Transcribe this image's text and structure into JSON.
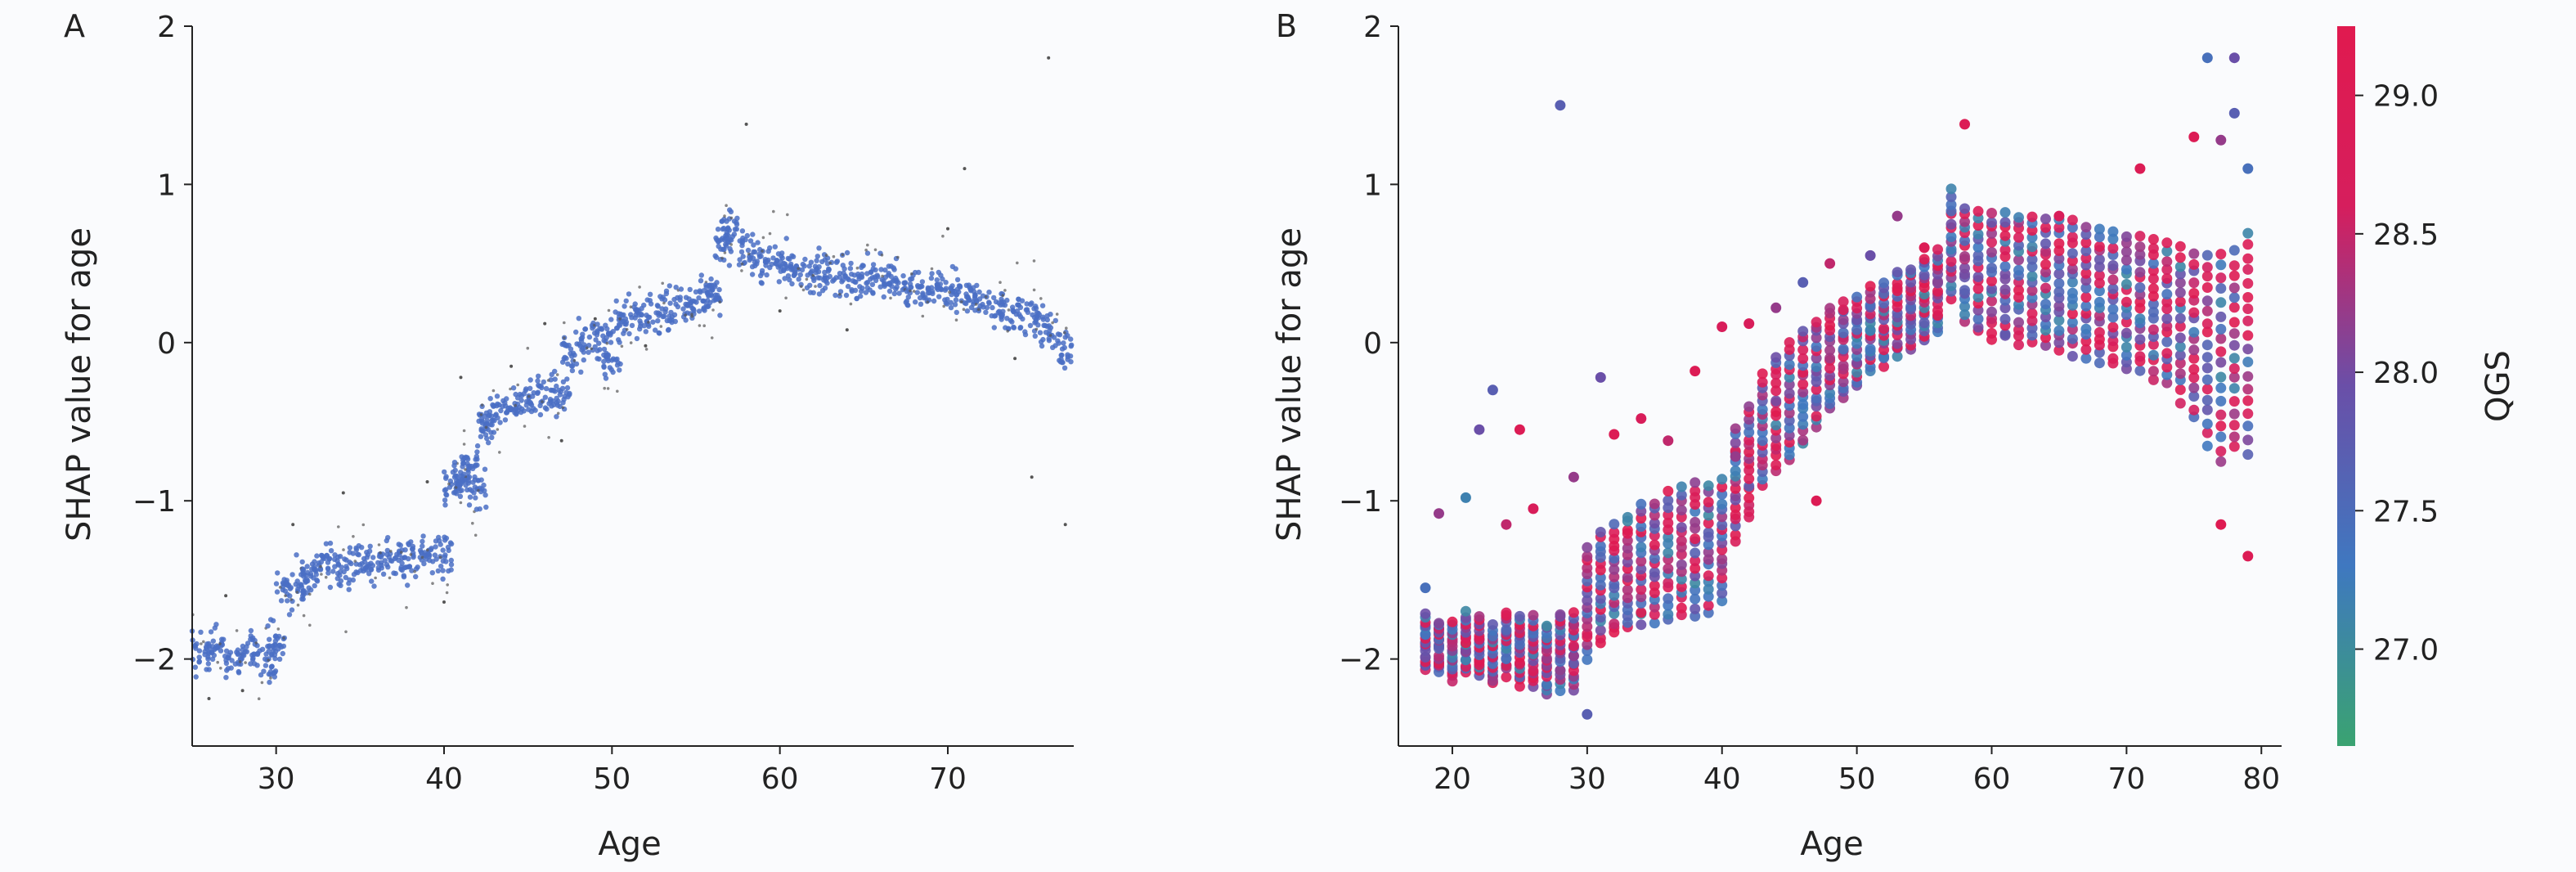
{
  "chart_data": [
    {
      "panel_label": "A",
      "type": "scatter",
      "xlabel": "Age",
      "ylabel": "SHAP value for age",
      "xlim": [
        25,
        77.5
      ],
      "ylim": [
        -2.55,
        2
      ],
      "x_ticks": [
        30,
        40,
        50,
        60,
        70
      ],
      "y_ticks": [
        -2,
        -1,
        0,
        1,
        2
      ],
      "y_tick_labels": [
        "−2",
        "−1",
        "0",
        "1",
        "2"
      ],
      "point_color": "#4a6fc4",
      "outlier_color": "#555555",
      "grid": false,
      "points": [
        [
          25.5,
          -1.98
        ],
        [
          26.5,
          -1.92
        ],
        [
          27.5,
          -2.0
        ],
        [
          28.5,
          -1.95
        ],
        [
          29.5,
          -2.02
        ],
        [
          30,
          -1.9
        ],
        [
          30.5,
          -1.58
        ],
        [
          31.5,
          -1.52
        ],
        [
          32,
          -1.48
        ],
        [
          33,
          -1.4
        ],
        [
          34,
          -1.42
        ],
        [
          35,
          -1.38
        ],
        [
          36,
          -1.4
        ],
        [
          37,
          -1.36
        ],
        [
          38,
          -1.38
        ],
        [
          39,
          -1.35
        ],
        [
          40,
          -1.34
        ],
        [
          40.5,
          -0.92
        ],
        [
          41,
          -0.85
        ],
        [
          41.5,
          -0.8
        ],
        [
          42,
          -0.95
        ],
        [
          42.5,
          -0.5
        ],
        [
          43,
          -0.45
        ],
        [
          44,
          -0.4
        ],
        [
          45,
          -0.38
        ],
        [
          46,
          -0.35
        ],
        [
          47,
          -0.33
        ],
        [
          47.5,
          -0.1
        ],
        [
          48.5,
          0.0
        ],
        [
          49.5,
          0.05
        ],
        [
          50,
          -0.15
        ],
        [
          50.5,
          0.15
        ],
        [
          51.5,
          0.18
        ],
        [
          52.5,
          0.2
        ],
        [
          53.5,
          0.22
        ],
        [
          54.5,
          0.24
        ],
        [
          55.5,
          0.28
        ],
        [
          56,
          0.32
        ],
        [
          56.5,
          0.62
        ],
        [
          57,
          0.72
        ],
        [
          58,
          0.58
        ],
        [
          59,
          0.52
        ],
        [
          60,
          0.5
        ],
        [
          61,
          0.47
        ],
        [
          62,
          0.45
        ],
        [
          63,
          0.44
        ],
        [
          64,
          0.42
        ],
        [
          65,
          0.42
        ],
        [
          66,
          0.4
        ],
        [
          67,
          0.38
        ],
        [
          68,
          0.35
        ],
        [
          69,
          0.33
        ],
        [
          70,
          0.32
        ],
        [
          71,
          0.3
        ],
        [
          72,
          0.27
        ],
        [
          73,
          0.24
        ],
        [
          74,
          0.2
        ],
        [
          75,
          0.15
        ],
        [
          76,
          0.1
        ],
        [
          77,
          -0.05
        ]
      ],
      "outliers": [
        [
          26,
          -2.25
        ],
        [
          27,
          -1.6
        ],
        [
          28,
          -2.2
        ],
        [
          31,
          -1.15
        ],
        [
          34,
          -0.95
        ],
        [
          39,
          -0.88
        ],
        [
          40,
          -1.64
        ],
        [
          41,
          -0.22
        ],
        [
          44,
          -0.15
        ],
        [
          46,
          0.12
        ],
        [
          47,
          -0.62
        ],
        [
          49,
          0.15
        ],
        [
          52,
          -0.02
        ],
        [
          58,
          1.38
        ],
        [
          60,
          0.2
        ],
        [
          64,
          0.08
        ],
        [
          70,
          0.72
        ],
        [
          71,
          1.1
        ],
        [
          74,
          -0.1
        ],
        [
          75,
          -0.85
        ],
        [
          76,
          1.8
        ],
        [
          77,
          -1.15
        ]
      ]
    },
    {
      "panel_label": "B",
      "type": "scatter",
      "xlabel": "Age",
      "ylabel": "SHAP value for age",
      "xlim": [
        16,
        81.5
      ],
      "ylim": [
        -2.55,
        2
      ],
      "x_ticks": [
        20,
        30,
        40,
        50,
        60,
        70,
        80
      ],
      "y_ticks": [
        -2,
        -1,
        0,
        1,
        2
      ],
      "y_tick_labels": [
        "−2",
        "−1",
        "0",
        "1",
        "2"
      ],
      "grid": false,
      "colorbar": {
        "label": "QGS",
        "range": [
          26.65,
          29.25
        ],
        "ticks": [
          27.0,
          27.5,
          28.0,
          28.5,
          29.0
        ],
        "tick_labels": [
          "27.0",
          "27.5",
          "28.0",
          "28.5",
          "29.0"
        ],
        "colors": [
          "#3aa371",
          "#3f78c0",
          "#6a4fa8",
          "#d61e5d",
          "#e01a4f"
        ]
      },
      "columns": [
        [
          18,
          -1.9,
          0.18
        ],
        [
          19,
          -1.92,
          0.16
        ],
        [
          20,
          -1.95,
          0.18
        ],
        [
          21,
          -1.9,
          0.18
        ],
        [
          22,
          -1.92,
          0.18
        ],
        [
          23,
          -1.98,
          0.18
        ],
        [
          24,
          -1.9,
          0.2
        ],
        [
          25,
          -1.95,
          0.22
        ],
        [
          26,
          -1.95,
          0.22
        ],
        [
          27,
          -2.0,
          0.22
        ],
        [
          28,
          -1.95,
          0.24
        ],
        [
          29,
          -1.95,
          0.24
        ],
        [
          30,
          -1.65,
          0.35
        ],
        [
          31,
          -1.55,
          0.35
        ],
        [
          32,
          -1.5,
          0.35
        ],
        [
          33,
          -1.45,
          0.36
        ],
        [
          34,
          -1.4,
          0.38
        ],
        [
          35,
          -1.38,
          0.38
        ],
        [
          36,
          -1.35,
          0.4
        ],
        [
          37,
          -1.32,
          0.4
        ],
        [
          38,
          -1.3,
          0.42
        ],
        [
          39,
          -1.3,
          0.4
        ],
        [
          40,
          -1.25,
          0.38
        ],
        [
          41,
          -0.9,
          0.35
        ],
        [
          42,
          -0.75,
          0.35
        ],
        [
          43,
          -0.55,
          0.35
        ],
        [
          44,
          -0.45,
          0.36
        ],
        [
          45,
          -0.38,
          0.38
        ],
        [
          46,
          -0.28,
          0.36
        ],
        [
          47,
          -0.2,
          0.34
        ],
        [
          48,
          -0.1,
          0.32
        ],
        [
          49,
          -0.05,
          0.3
        ],
        [
          50,
          0.0,
          0.28
        ],
        [
          51,
          0.08,
          0.26
        ],
        [
          52,
          0.12,
          0.26
        ],
        [
          53,
          0.18,
          0.26
        ],
        [
          54,
          0.22,
          0.26
        ],
        [
          55,
          0.27,
          0.26
        ],
        [
          56,
          0.32,
          0.26
        ],
        [
          57,
          0.62,
          0.34
        ],
        [
          58,
          0.5,
          0.36
        ],
        [
          59,
          0.45,
          0.38
        ],
        [
          60,
          0.42,
          0.4
        ],
        [
          61,
          0.42,
          0.4
        ],
        [
          62,
          0.4,
          0.4
        ],
        [
          63,
          0.4,
          0.4
        ],
        [
          64,
          0.38,
          0.4
        ],
        [
          65,
          0.36,
          0.42
        ],
        [
          66,
          0.35,
          0.42
        ],
        [
          67,
          0.32,
          0.42
        ],
        [
          68,
          0.3,
          0.42
        ],
        [
          69,
          0.28,
          0.42
        ],
        [
          70,
          0.25,
          0.42
        ],
        [
          71,
          0.24,
          0.42
        ],
        [
          72,
          0.22,
          0.44
        ],
        [
          73,
          0.18,
          0.44
        ],
        [
          74,
          0.12,
          0.48
        ],
        [
          75,
          0.05,
          0.52
        ],
        [
          76,
          -0.05,
          0.6
        ],
        [
          77,
          -0.1,
          0.66
        ],
        [
          78,
          -0.05,
          0.62
        ],
        [
          79,
          0.0,
          0.7
        ]
      ],
      "outliers": [
        [
          18,
          -1.55,
          0.3
        ],
        [
          19,
          -1.08,
          0.6
        ],
        [
          21,
          -0.98,
          0.2
        ],
        [
          22,
          -0.55,
          0.5
        ],
        [
          23,
          -0.3,
          0.4
        ],
        [
          24,
          -1.15,
          0.7
        ],
        [
          25,
          -0.55,
          0.9
        ],
        [
          26,
          -1.05,
          0.8
        ],
        [
          28,
          1.5,
          0.4
        ],
        [
          29,
          -0.85,
          0.6
        ],
        [
          30,
          -2.35,
          0.4
        ],
        [
          31,
          -0.22,
          0.5
        ],
        [
          32,
          -0.58,
          0.9
        ],
        [
          34,
          -0.48,
          0.8
        ],
        [
          36,
          -0.62,
          0.7
        ],
        [
          38,
          -0.18,
          0.9
        ],
        [
          40,
          0.1,
          0.8
        ],
        [
          41,
          -0.72,
          0.6
        ],
        [
          42,
          0.12,
          0.8
        ],
        [
          44,
          0.22,
          0.6
        ],
        [
          46,
          0.38,
          0.4
        ],
        [
          47,
          -1.0,
          0.9
        ],
        [
          48,
          0.5,
          0.7
        ],
        [
          51,
          0.55,
          0.5
        ],
        [
          53,
          0.8,
          0.6
        ],
        [
          55,
          0.6,
          0.9
        ],
        [
          58,
          1.38,
          0.9
        ],
        [
          65,
          0.8,
          0.8
        ],
        [
          71,
          1.1,
          0.9
        ],
        [
          75,
          1.3,
          0.9
        ],
        [
          76,
          1.8,
          0.3
        ],
        [
          77,
          1.28,
          0.6
        ],
        [
          77,
          -1.15,
          0.95
        ],
        [
          78,
          1.8,
          0.5
        ],
        [
          78,
          1.45,
          0.4
        ],
        [
          79,
          1.1,
          0.3
        ],
        [
          79,
          -1.35,
          0.9
        ]
      ]
    }
  ]
}
